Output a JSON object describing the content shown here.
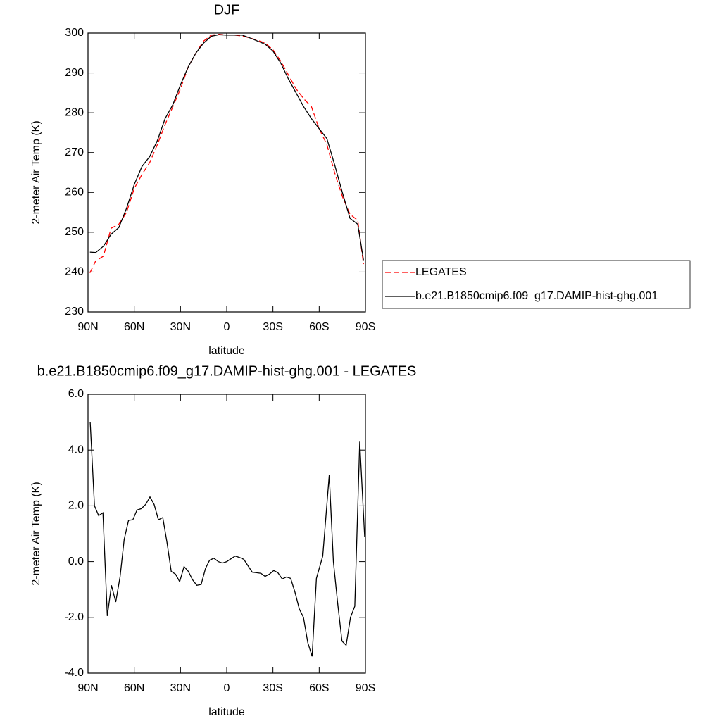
{
  "chart_data": [
    {
      "type": "line",
      "title": "DJF",
      "xlabel": "latitude",
      "ylabel": "2-meter Air Temp (K)",
      "x": [
        88.75,
        85,
        80,
        75,
        70,
        65,
        60,
        55,
        50,
        45,
        40,
        35,
        30,
        25,
        20,
        15,
        10,
        5,
        0,
        -5,
        -10,
        -15,
        -20,
        -25,
        -30,
        -35,
        -40,
        -45,
        -50,
        -55,
        -60,
        -65,
        -70,
        -75,
        -80,
        -85,
        -88.75
      ],
      "series": [
        {
          "name": "LEGATES",
          "color": "#ff0000",
          "line_style": "dashed",
          "values": [
            239.8,
            242.8,
            244,
            251,
            252,
            255,
            261,
            264.5,
            267.5,
            272,
            277,
            281.5,
            286,
            291.5,
            295,
            298,
            299.5,
            299.7,
            299.5,
            299.5,
            299.3,
            298.8,
            298.2,
            297.5,
            295.8,
            293,
            289.5,
            286,
            283.5,
            281.5,
            276,
            272,
            265,
            259,
            254.5,
            253,
            242
          ]
        },
        {
          "name": "b.e21.B1850cmip6.f09_g17.DAMIP-hist-ghg.001",
          "color": "#000000",
          "line_style": "solid",
          "values": [
            245,
            244.9,
            246.5,
            249.5,
            251.2,
            256,
            262,
            266.5,
            269,
            273,
            278.5,
            282,
            287,
            291.5,
            295,
            297.5,
            299.2,
            299.6,
            299.5,
            299.5,
            299.5,
            298.8,
            298,
            297.2,
            295.5,
            292.5,
            288.5,
            285,
            281.5,
            278.5,
            276,
            273.5,
            267,
            260,
            253.5,
            252,
            243
          ]
        }
      ],
      "xlim": [
        90,
        -90
      ],
      "ylim": [
        230,
        300
      ],
      "xticks": [
        {
          "value": 90,
          "label": "90N"
        },
        {
          "value": 60,
          "label": "60N"
        },
        {
          "value": 30,
          "label": "30N"
        },
        0,
        {
          "value": -30,
          "label": "30S"
        },
        {
          "value": -60,
          "label": "60S"
        },
        {
          "value": -90,
          "label": "90S"
        }
      ],
      "yticks": [
        230,
        240,
        250,
        260,
        270,
        280,
        290,
        300
      ],
      "legend": "outside-right"
    },
    {
      "type": "line",
      "title": "b.e21.B1850cmip6.f09_g17.DAMIP-hist-ghg.001 - LEGATES",
      "xlabel": "latitude",
      "ylabel": "2-meter Air Temp (K)",
      "x": [
        88.6,
        85.8,
        83.1,
        80.3,
        77.5,
        74.8,
        72.0,
        69.2,
        66.5,
        63.7,
        60.9,
        58.2,
        55.4,
        52.6,
        49.8,
        47.1,
        44.3,
        41.5,
        38.8,
        36.0,
        33.2,
        30.5,
        27.7,
        24.9,
        22.2,
        19.4,
        16.6,
        13.8,
        11.1,
        8.3,
        5.5,
        2.8,
        0,
        -2.8,
        -5.5,
        -8.3,
        -11.1,
        -13.8,
        -16.6,
        -19.4,
        -22.2,
        -24.9,
        -27.7,
        -30.5,
        -33.2,
        -36.0,
        -38.8,
        -41.5,
        -44.3,
        -47.1,
        -49.8,
        -52.6,
        -55.4,
        -58.2,
        -62.3,
        -66.5,
        -69.2,
        -72.0,
        -74.8,
        -77.5,
        -80.3,
        -83.1,
        -86.3,
        -89.5
      ],
      "values": [
        5.0,
        2.0,
        1.65,
        1.75,
        -1.95,
        -0.85,
        -1.45,
        -0.55,
        0.8,
        1.48,
        1.5,
        1.85,
        1.9,
        2.05,
        2.32,
        2.05,
        1.5,
        1.58,
        0.7,
        -0.35,
        -0.45,
        -0.72,
        -0.18,
        -0.35,
        -0.65,
        -0.85,
        -0.82,
        -0.25,
        0.05,
        0.12,
        0.0,
        -0.05,
        0.0,
        0.1,
        0.2,
        0.15,
        0.08,
        -0.15,
        -0.38,
        -0.4,
        -0.42,
        -0.53,
        -0.45,
        -0.32,
        -0.4,
        -0.62,
        -0.55,
        -0.6,
        -1.1,
        -1.7,
        -2.0,
        -2.9,
        -3.4,
        -0.6,
        0.2,
        3.1,
        0.0,
        -1.5,
        -2.85,
        -3.0,
        -2.0,
        -1.6,
        4.3,
        0.9
      ],
      "color": "#000000",
      "xlim": [
        90,
        -90
      ],
      "ylim": [
        -4,
        6
      ],
      "xticks": [
        {
          "value": 90,
          "label": "90N"
        },
        {
          "value": 60,
          "label": "60N"
        },
        {
          "value": 30,
          "label": "30N"
        },
        0,
        {
          "value": -30,
          "label": "30S"
        },
        {
          "value": -60,
          "label": "60S"
        },
        {
          "value": -90,
          "label": "90S"
        }
      ],
      "yticks": [
        {
          "value": -4,
          "label": "-4.0"
        },
        {
          "value": -2,
          "label": "-2.0"
        },
        {
          "value": 0,
          "label": "0.0"
        },
        {
          "value": 2,
          "label": "2.0"
        },
        {
          "value": 4,
          "label": "4.0"
        },
        {
          "value": 6,
          "label": "6.0"
        }
      ]
    }
  ]
}
